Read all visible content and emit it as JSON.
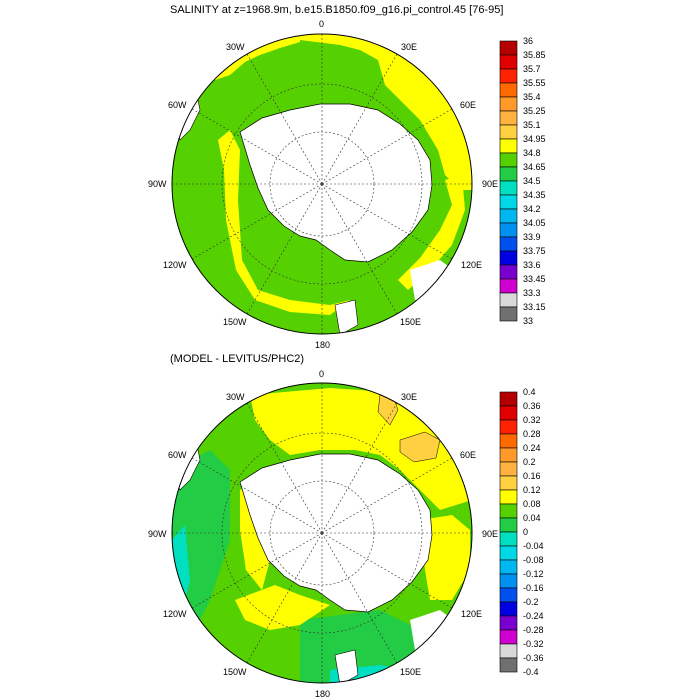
{
  "panels": [
    {
      "title": "SALINITY at z=1968.9m, b.e15.B1850.f09_g16.pi_control.45 [76-95]",
      "lon_labels": {
        "top": "0",
        "top_left": "30W",
        "top_right": "30E",
        "left_upper": "60W",
        "right_upper": "60E",
        "left": "90W",
        "right": "90E",
        "left_lower": "120W",
        "right_lower": "120E",
        "bottom_left": "150W",
        "bottom_right": "150E",
        "bottom": "180"
      },
      "colorbar": {
        "labels": [
          "36",
          "35.85",
          "35.7",
          "35.55",
          "35.4",
          "35.25",
          "35.1",
          "34.95",
          "34.8",
          "34.65",
          "34.5",
          "34.35",
          "34.2",
          "34.05",
          "33.9",
          "33.75",
          "33.6",
          "33.45",
          "33.3",
          "33.15",
          "33"
        ],
        "colors": [
          "#b40000",
          "#e00000",
          "#ff2200",
          "#ff6a00",
          "#ff9a2a",
          "#ffb240",
          "#ffd040",
          "#ffff00",
          "#55d000",
          "#22cc44",
          "#00e0c0",
          "#00d8e8",
          "#00b8f0",
          "#0090f0",
          "#0050f0",
          "#0000e0",
          "#7a00d0",
          "#d000d0",
          "#d8d8d8",
          "#707070"
        ]
      }
    },
    {
      "title": "(MODEL - LEVITUS/PHC2)",
      "lon_labels": {
        "top": "0",
        "top_left": "30W",
        "top_right": "30E",
        "left_upper": "60W",
        "right_upper": "60E",
        "left": "90W",
        "right": "90E",
        "left_lower": "120W",
        "right_lower": "120E",
        "bottom_left": "150W",
        "bottom_right": "150E",
        "bottom": "180"
      },
      "colorbar": {
        "labels": [
          "0.4",
          "0.36",
          "0.32",
          "0.28",
          "0.24",
          "0.2",
          "0.16",
          "0.12",
          "0.08",
          "0.04",
          "0",
          "-0.04",
          "-0.08",
          "-0.12",
          "-0.16",
          "-0.2",
          "-0.24",
          "-0.28",
          "-0.32",
          "-0.36",
          "-0.4"
        ],
        "colors": [
          "#b40000",
          "#e00000",
          "#ff2200",
          "#ff6a00",
          "#ff9a2a",
          "#ffb240",
          "#ffd040",
          "#ffff00",
          "#55d000",
          "#22cc44",
          "#00e0c0",
          "#00d8e8",
          "#00b8f0",
          "#0090f0",
          "#0050f0",
          "#0000e0",
          "#7a00d0",
          "#d000d0",
          "#d8d8d8",
          "#707070"
        ]
      }
    }
  ],
  "colors": {
    "green": "#55d000",
    "yellow": "#ffff00",
    "orange_light": "#ffd040",
    "cyan": "#00e0c0",
    "green2": "#22cc44",
    "land": "#ffffff"
  }
}
